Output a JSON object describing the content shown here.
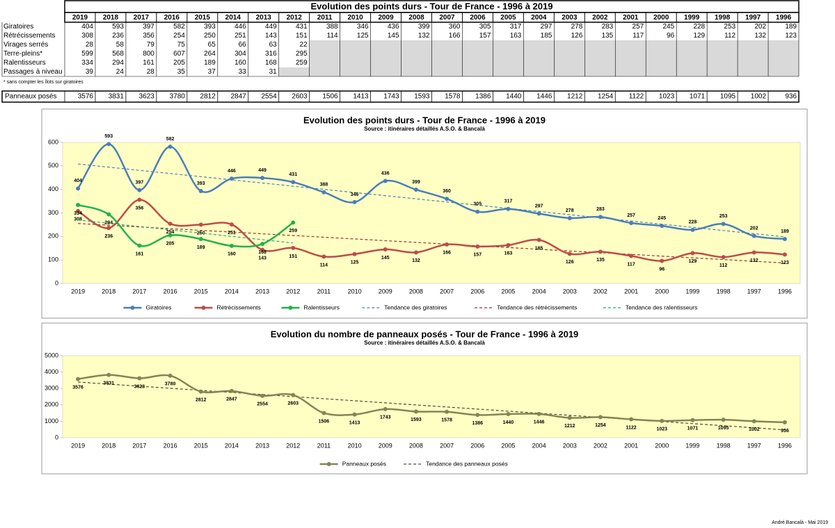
{
  "table": {
    "title": "Evolution des points durs - Tour de France - 1996 à 2019",
    "columns": [
      "2019",
      "2018",
      "2017",
      "2016",
      "2015",
      "2014",
      "2013",
      "2012",
      "2011",
      "2010",
      "2009",
      "2008",
      "2007",
      "2006",
      "2005",
      "2004",
      "2003",
      "2002",
      "2001",
      "2000",
      "1999",
      "1998",
      "1997",
      "1996"
    ],
    "rows": [
      {
        "label": "Giratoires",
        "values": [
          404,
          593,
          397,
          582,
          393,
          446,
          449,
          431,
          388,
          346,
          436,
          399,
          360,
          305,
          317,
          297,
          278,
          283,
          257,
          245,
          228,
          253,
          202,
          189
        ]
      },
      {
        "label": "Rétrécissements",
        "values": [
          308,
          236,
          356,
          254,
          250,
          251,
          143,
          151,
          114,
          125,
          145,
          132,
          166,
          157,
          163,
          185,
          126,
          135,
          117,
          96,
          129,
          112,
          132,
          123
        ]
      },
      {
        "label": "Virages serrés",
        "values": [
          28,
          58,
          79,
          75,
          65,
          66,
          63,
          22,
          null,
          null,
          null,
          null,
          null,
          null,
          null,
          null,
          null,
          null,
          null,
          null,
          null,
          null,
          null,
          null
        ]
      },
      {
        "label": "Terre-pleins*",
        "values": [
          599,
          568,
          800,
          607,
          264,
          304,
          316,
          295,
          null,
          null,
          null,
          null,
          null,
          null,
          null,
          null,
          null,
          null,
          null,
          null,
          null,
          null,
          null,
          null
        ]
      },
      {
        "label": "Ralentisseurs",
        "values": [
          334,
          294,
          161,
          205,
          189,
          160,
          168,
          259,
          null,
          null,
          null,
          null,
          null,
          null,
          null,
          null,
          null,
          null,
          null,
          null,
          null,
          null,
          null,
          null
        ]
      },
      {
        "label": "Passages à niveau",
        "values": [
          39,
          24,
          28,
          35,
          37,
          33,
          31,
          null,
          null,
          null,
          null,
          null,
          null,
          null,
          null,
          null,
          null,
          null,
          null,
          null,
          null,
          null,
          null,
          null
        ]
      }
    ],
    "note": "* sans compter les îlots sur giratoires",
    "summary": {
      "label": "Panneaux posés",
      "values": [
        3576,
        3831,
        3623,
        3780,
        2812,
        2847,
        2554,
        2603,
        1506,
        1413,
        1743,
        1593,
        1578,
        1386,
        1440,
        1446,
        1212,
        1254,
        1122,
        1023,
        1071,
        1095,
        1002,
        936
      ]
    }
  },
  "chart_data": [
    {
      "type": "line",
      "title": "Evolution des points durs - Tour de France - 1996 à 2019",
      "subtitle": "Source : itinéraires détaillés A.S.O. & Bancalà",
      "categories": [
        "2019",
        "2018",
        "2017",
        "2016",
        "2015",
        "2014",
        "2013",
        "2012",
        "2011",
        "2010",
        "2009",
        "2008",
        "2007",
        "2006",
        "2005",
        "2004",
        "2003",
        "2002",
        "2001",
        "2000",
        "1999",
        "1998",
        "1997",
        "1996"
      ],
      "ylim": [
        0,
        600
      ],
      "yticks": [
        0,
        100,
        200,
        300,
        400,
        500,
        600
      ],
      "grid": false,
      "series": [
        {
          "name": "Giratoires",
          "color": "#4a7ebb",
          "values": [
            404,
            593,
            397,
            582,
            393,
            446,
            449,
            431,
            388,
            346,
            436,
            399,
            360,
            305,
            317,
            297,
            278,
            283,
            257,
            245,
            228,
            253,
            202,
            189
          ],
          "trendline": {
            "name": "Tendance des giratoires",
            "color": "#4a7ebb"
          }
        },
        {
          "name": "Rétrécissements",
          "color": "#be4b48",
          "values": [
            308,
            236,
            356,
            254,
            250,
            251,
            143,
            151,
            114,
            125,
            145,
            132,
            166,
            157,
            163,
            185,
            126,
            135,
            117,
            96,
            129,
            112,
            132,
            123
          ],
          "trendline": {
            "name": "Tendance des rétrécissements",
            "color": "#a0302c"
          }
        },
        {
          "name": "Ralentisseurs",
          "color": "#23b14d",
          "values": [
            334,
            294,
            161,
            205,
            189,
            160,
            168,
            259,
            null,
            null,
            null,
            null,
            null,
            null,
            null,
            null,
            null,
            null,
            null,
            null,
            null,
            null,
            null,
            null
          ],
          "trendline": {
            "name": "Tendance des ralentisseurs",
            "color": "#2aa08a"
          }
        }
      ]
    },
    {
      "type": "line",
      "title": "Evolution du nombre de panneaux posés - Tour de France - 1996 à 2019",
      "subtitle": "Source : itinéraires détaillés A.S.O. & Bancalà",
      "categories": [
        "2019",
        "2018",
        "2017",
        "2016",
        "2015",
        "2014",
        "2013",
        "2012",
        "2011",
        "2010",
        "2009",
        "2008",
        "2007",
        "2006",
        "2005",
        "2004",
        "2003",
        "2002",
        "2001",
        "2000",
        "1999",
        "1998",
        "1997",
        "1996"
      ],
      "ylim": [
        0,
        5000
      ],
      "yticks": [
        0,
        1000,
        2000,
        3000,
        4000,
        5000
      ],
      "grid": false,
      "series": [
        {
          "name": "Panneaux posés",
          "color": "#848456",
          "values": [
            3576,
            3831,
            3623,
            3780,
            2812,
            2847,
            2554,
            2603,
            1506,
            1413,
            1743,
            1593,
            1578,
            1386,
            1440,
            1446,
            1212,
            1254,
            1122,
            1023,
            1071,
            1095,
            1002,
            936
          ],
          "trendline": {
            "name": "Tendance des panneaux posés",
            "color": "#4a4a30"
          }
        }
      ]
    }
  ],
  "footer": "André Bancalà - Mai 2019"
}
